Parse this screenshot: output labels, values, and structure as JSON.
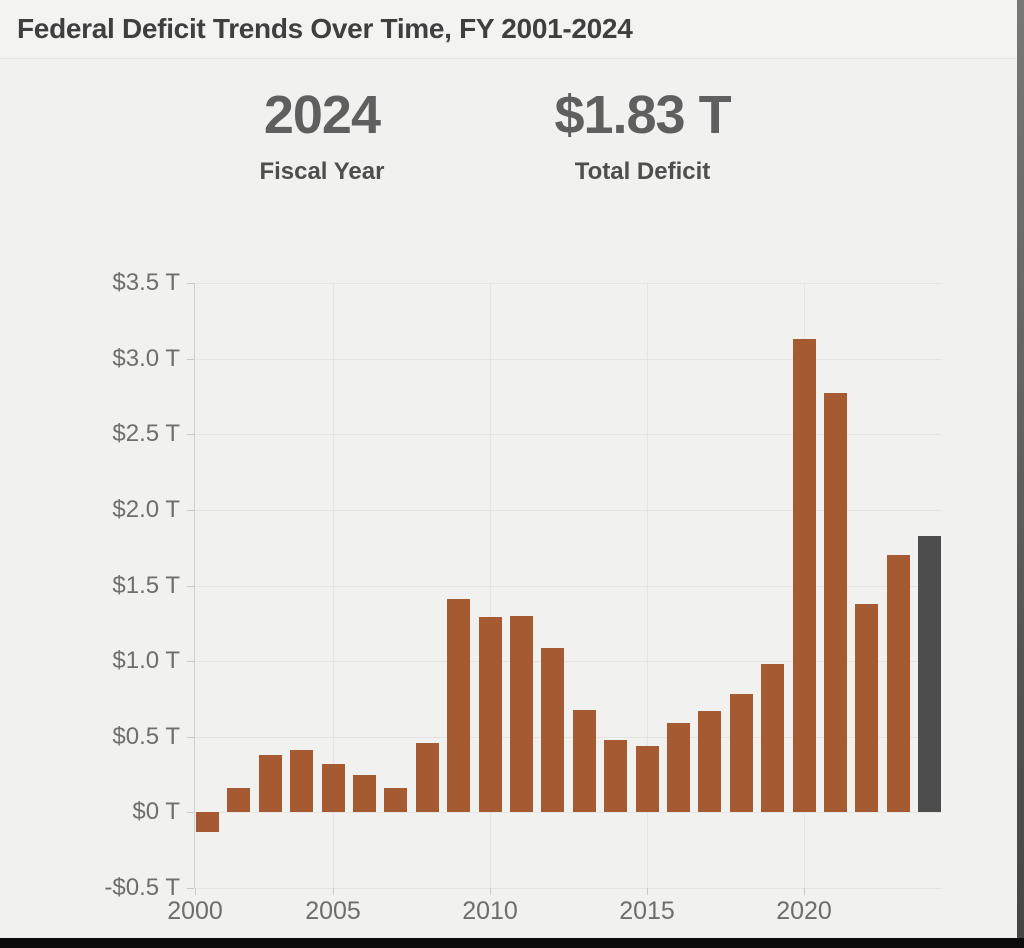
{
  "page": {
    "title": "Federal Deficit Trends Over Time, FY 2001-2024"
  },
  "stats": [
    {
      "value": "2024",
      "label": "Fiscal Year"
    },
    {
      "value": "$1.83 T",
      "label": "Total Deficit"
    }
  ],
  "chart_data": {
    "type": "bar",
    "title": "Federal Deficit Trends Over Time, FY 2001-2024",
    "xlabel": "",
    "ylabel": "",
    "units": "trillions of US dollars",
    "x": [
      2001,
      2002,
      2003,
      2004,
      2005,
      2006,
      2007,
      2008,
      2009,
      2010,
      2011,
      2012,
      2013,
      2014,
      2015,
      2016,
      2017,
      2018,
      2019,
      2020,
      2021,
      2022,
      2023,
      2024
    ],
    "values": [
      -0.13,
      0.16,
      0.38,
      0.41,
      0.32,
      0.25,
      0.16,
      0.46,
      1.41,
      1.29,
      1.3,
      1.09,
      0.68,
      0.48,
      0.44,
      0.59,
      0.67,
      0.78,
      0.98,
      3.13,
      2.77,
      1.38,
      1.7,
      1.83
    ],
    "highlight_year": 2024,
    "bar_color": "#a65a32",
    "highlight_color": "#4d4d4d",
    "ylim": [
      -0.5,
      3.5
    ],
    "grid": true,
    "legend": null,
    "yticks": [
      {
        "value": 3.5,
        "label": "$3.5 T"
      },
      {
        "value": 3.0,
        "label": "$3.0 T"
      },
      {
        "value": 2.5,
        "label": "$2.5 T"
      },
      {
        "value": 2.0,
        "label": "$2.0 T"
      },
      {
        "value": 1.5,
        "label": "$1.5 T"
      },
      {
        "value": 1.0,
        "label": "$1.0 T"
      },
      {
        "value": 0.5,
        "label": "$0.5 T"
      },
      {
        "value": 0,
        "label": "$0 T"
      },
      {
        "value": -0.5,
        "label": "-$0.5 T"
      }
    ],
    "xticks": [
      {
        "value": 2000,
        "label": "2000"
      },
      {
        "value": 2005,
        "label": "2005"
      },
      {
        "value": 2010,
        "label": "2010"
      },
      {
        "value": 2015,
        "label": "2015"
      },
      {
        "value": 2020,
        "label": "2020"
      }
    ]
  }
}
